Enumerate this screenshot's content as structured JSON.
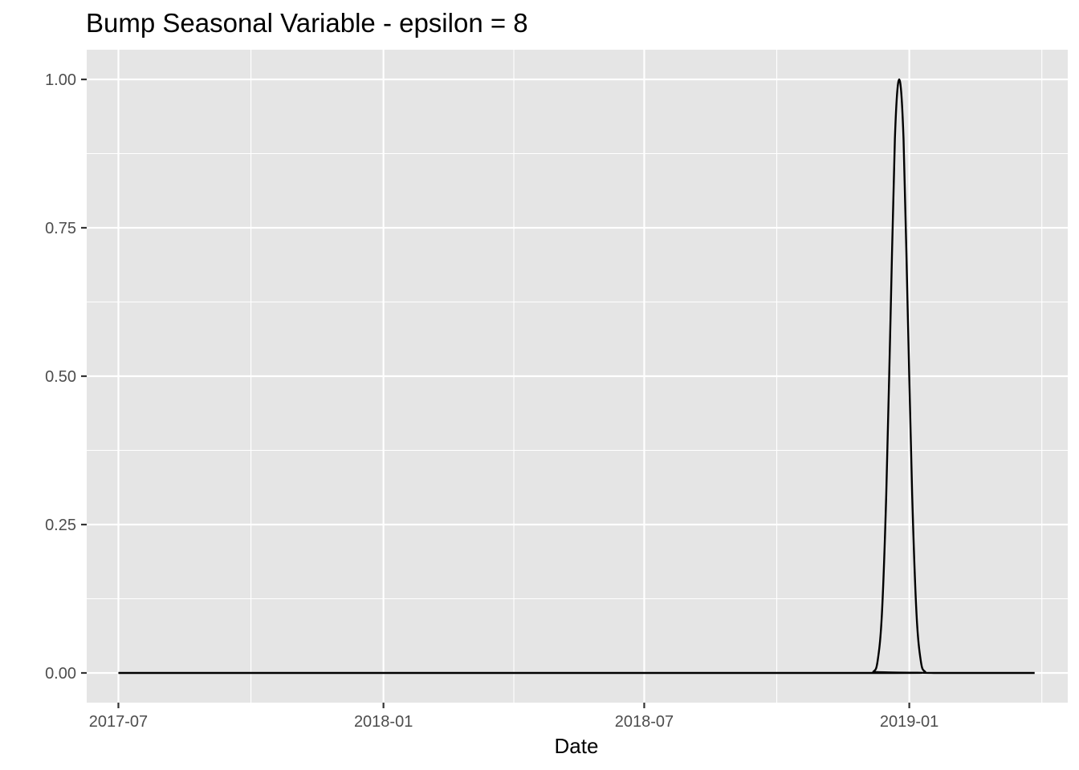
{
  "chart_data": {
    "type": "line",
    "title": "Bump Seasonal Variable - epsilon = 8",
    "xlabel": "Date",
    "ylabel": "",
    "x_ticks": [
      "2017-07",
      "2018-01",
      "2018-07",
      "2019-01"
    ],
    "y_ticks": [
      "0.00",
      "0.25",
      "0.50",
      "0.75",
      "1.00"
    ],
    "xlim": [
      "2017-06-09",
      "2019-04-21"
    ],
    "ylim": [
      -0.05,
      1.05
    ],
    "x_start": "2017-07-01",
    "x_end": "2019-03-29",
    "peak_date": "2018-12-25",
    "peak_value": 1.0,
    "series": [
      {
        "x": [
          "2017-07-01",
          "2018-12-01",
          "2018-12-07",
          "2018-12-10",
          "2018-12-13",
          "2018-12-16",
          "2018-12-19",
          "2018-12-22",
          "2018-12-25",
          "2018-12-28",
          "2018-12-31",
          "2019-01-03",
          "2019-01-06",
          "2019-01-09",
          "2019-01-12",
          "2019-01-18",
          "2019-03-29"
        ],
        "values": [
          0,
          0,
          0.002,
          0.02,
          0.1,
          0.3,
          0.6,
          0.9,
          1.0,
          0.9,
          0.6,
          0.3,
          0.1,
          0.02,
          0.002,
          0,
          0
        ]
      }
    ],
    "grid": true,
    "colors": {
      "panel": "#e5e5e5",
      "grid": "#ffffff",
      "line": "#000000",
      "tick": "#333333"
    }
  }
}
